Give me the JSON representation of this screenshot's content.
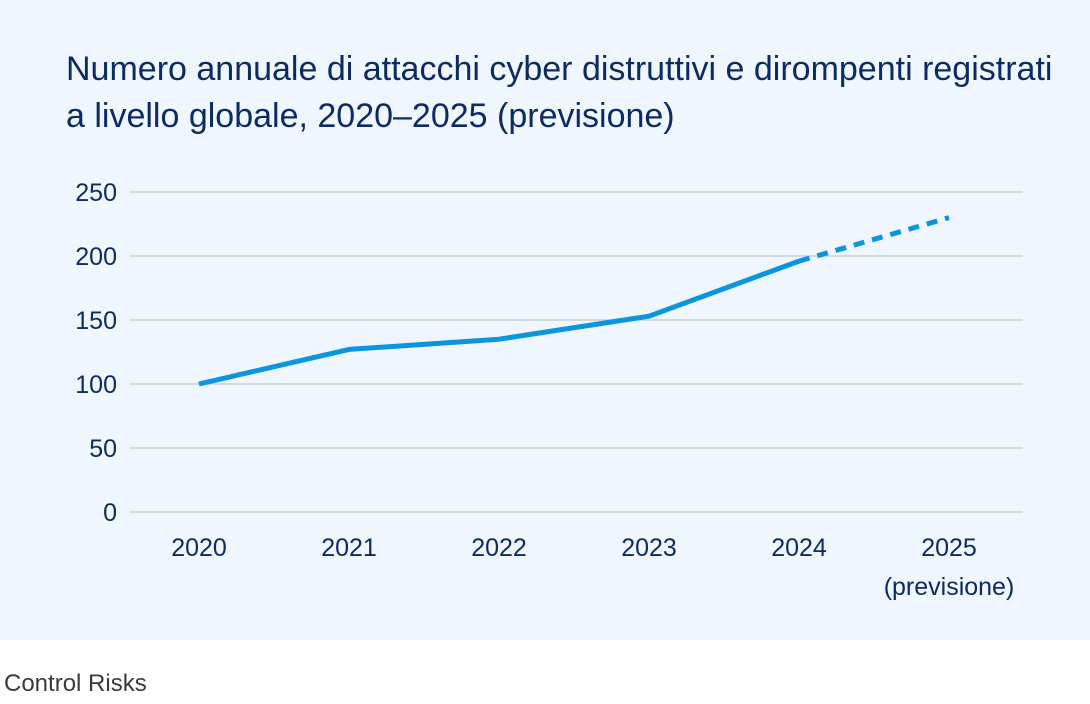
{
  "chart_data": {
    "type": "line",
    "title": "Numero annuale di attacchi cyber distruttivi e dirompenti registrati a livello globale, 2020–2025 (previsione)",
    "xlabel": "",
    "ylabel": "",
    "categories": [
      "2020",
      "2021",
      "2022",
      "2023",
      "2024",
      "2025"
    ],
    "category_sublabels": [
      "",
      "",
      "",
      "",
      "",
      "(previsione)"
    ],
    "series": [
      {
        "values": [
          100,
          127,
          135,
          153,
          196,
          230
        ],
        "forecast_from_index": 4,
        "color": "#0a96de"
      }
    ],
    "y_ticks": [
      0,
      50,
      100,
      150,
      200,
      250
    ],
    "ylim": [
      0,
      250
    ],
    "grid": true,
    "legend": "none",
    "colors": {
      "background": "#eff6fd",
      "text": "#0d2b63",
      "grid": "#c8cfdb",
      "line": "#0a96de"
    }
  },
  "footer": {
    "source": "Control Risks"
  }
}
